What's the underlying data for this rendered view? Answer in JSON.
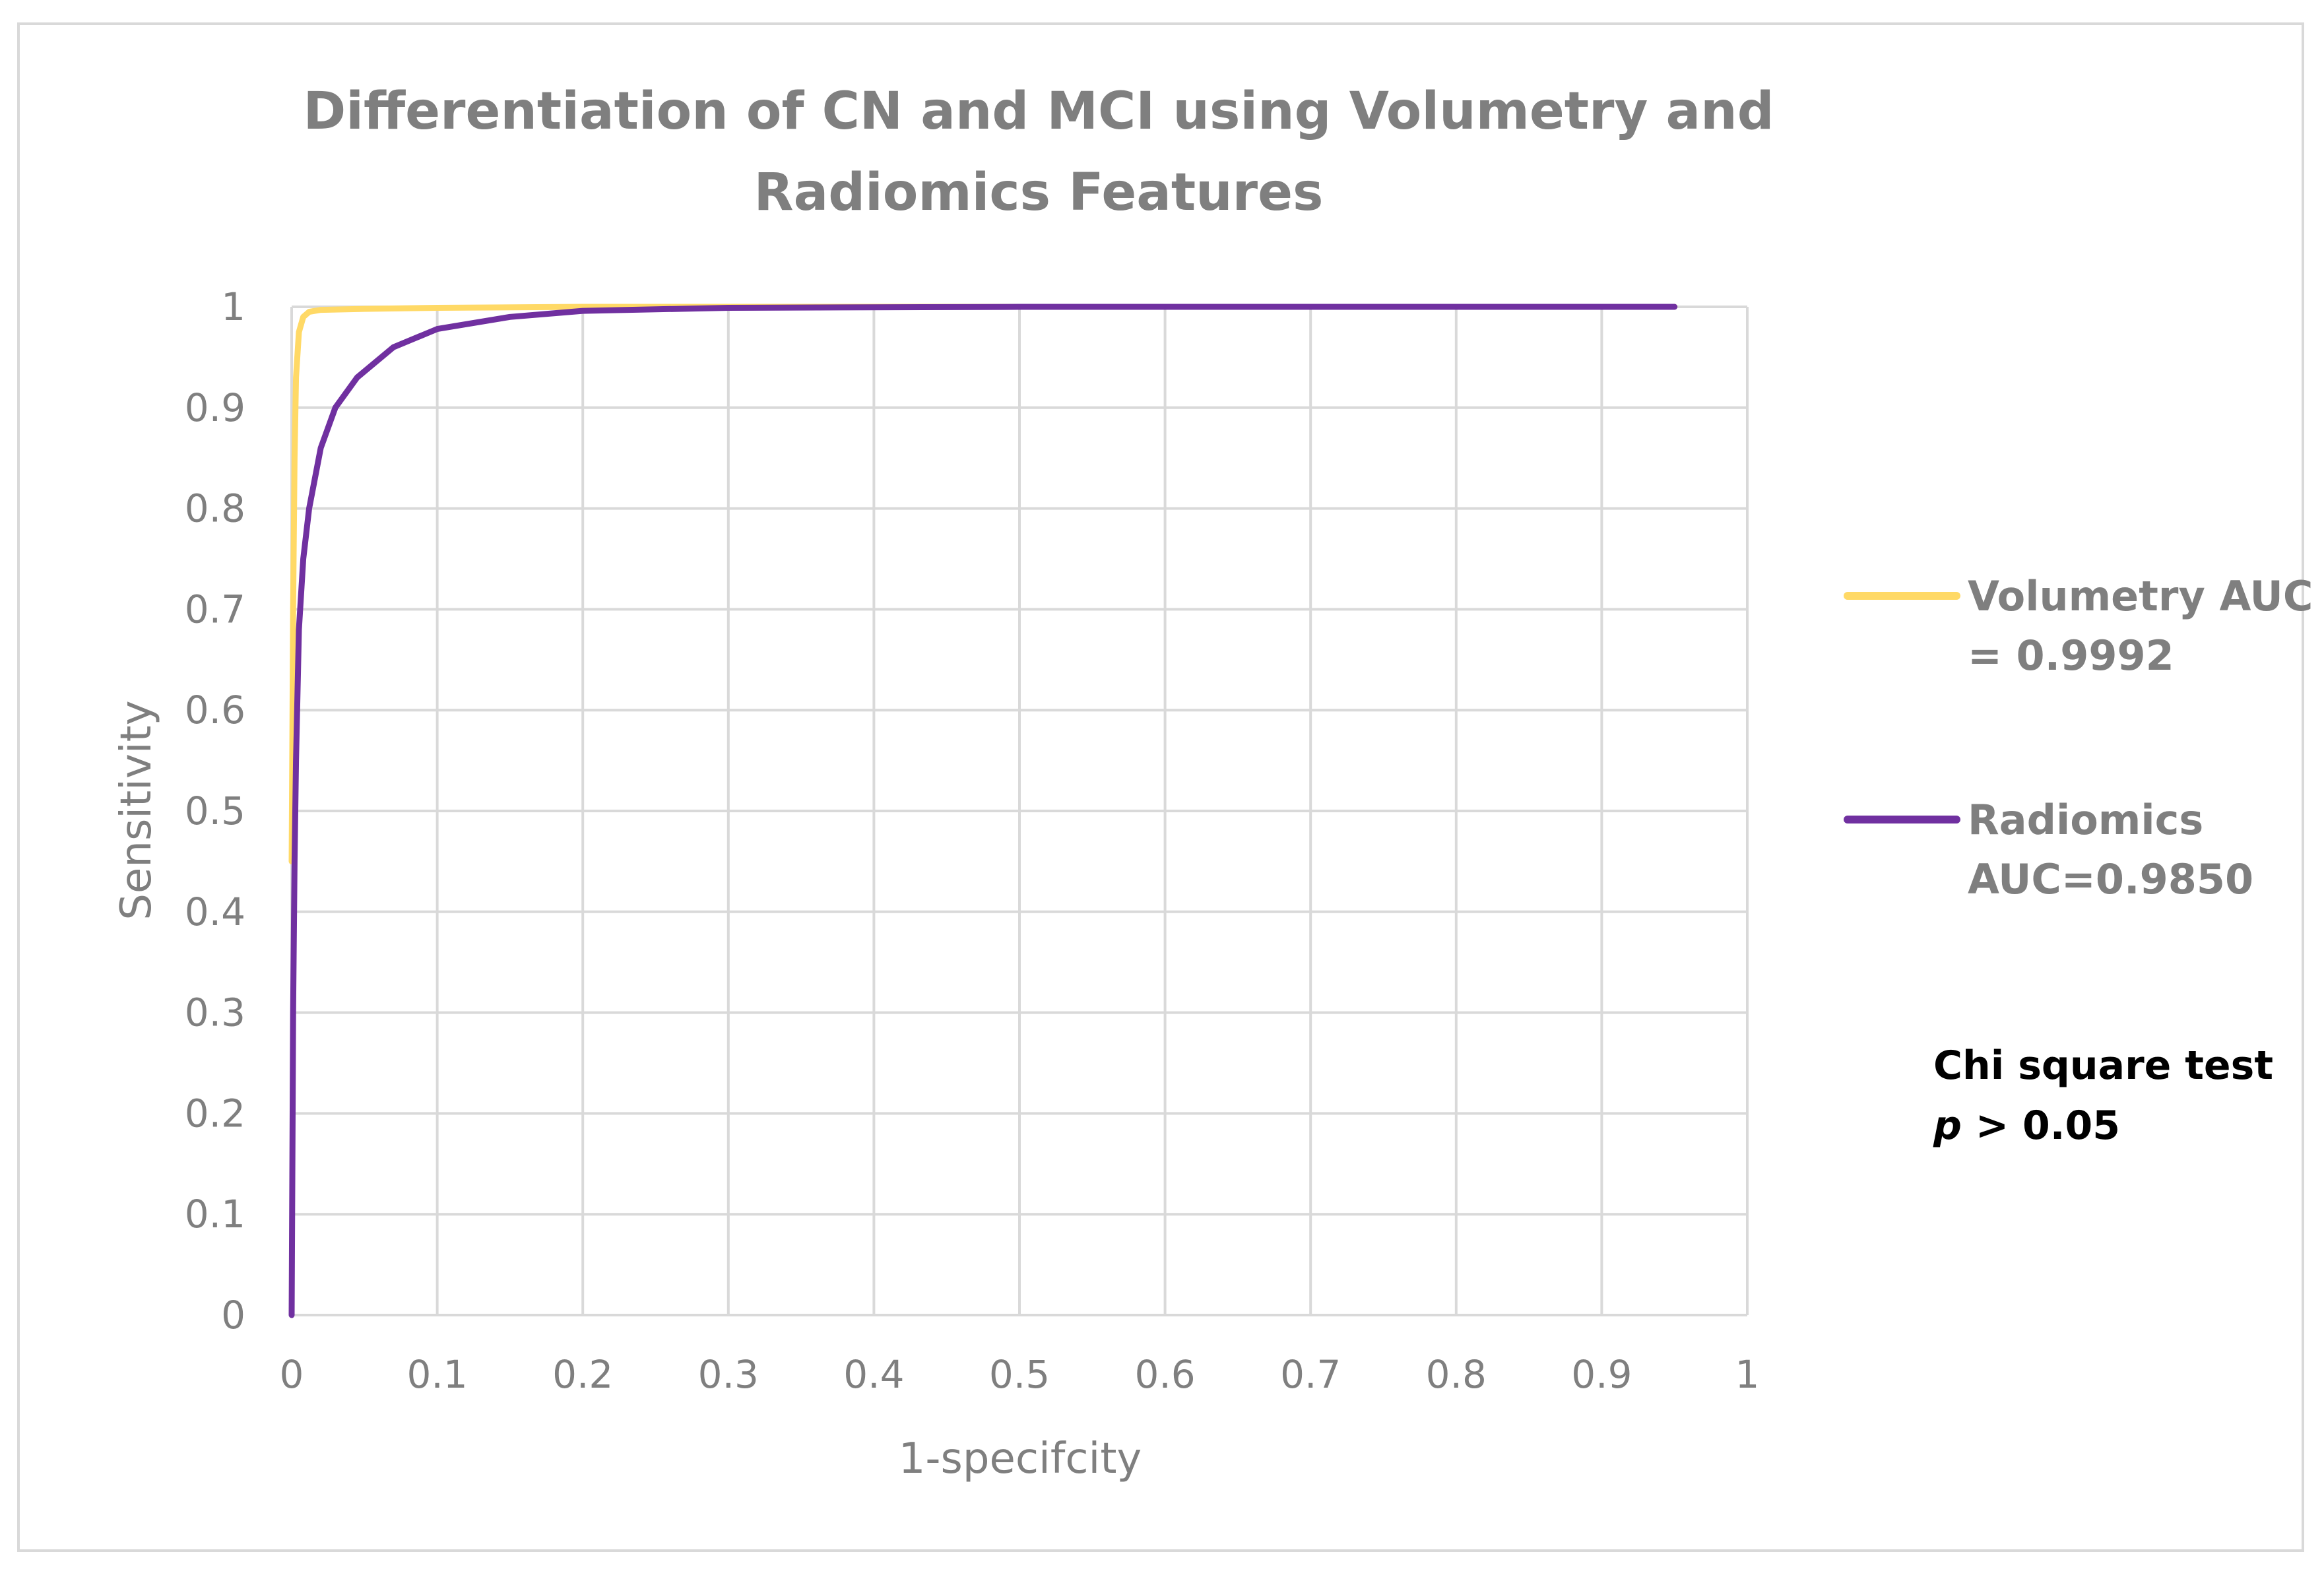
{
  "chart_data": {
    "type": "line",
    "title_lines": [
      "Differentiation of CN and MCI using Volumetry and",
      "Radiomics Features"
    ],
    "xlabel": "1-specifcity",
    "ylabel": "Sensitivity",
    "xlim": [
      0,
      1
    ],
    "ylim": [
      0,
      1
    ],
    "x_ticks": [
      "0",
      "0.1",
      "0.2",
      "0.3",
      "0.4",
      "0.5",
      "0.6",
      "0.7",
      "0.8",
      "0.9",
      "1"
    ],
    "y_ticks": [
      "0",
      "0.1",
      "0.2",
      "0.3",
      "0.4",
      "0.5",
      "0.6",
      "0.7",
      "0.8",
      "0.9",
      "1"
    ],
    "grid": true,
    "legend_position": "right",
    "series": [
      {
        "name": "Volumetry AUC = 0.9992",
        "legend_lines": [
          "Volumetry AUC",
          "= 0.9992"
        ],
        "color": "#ffd966",
        "points": [
          [
            0,
            0.45
          ],
          [
            0.001,
            0.7
          ],
          [
            0.002,
            0.85
          ],
          [
            0.003,
            0.93
          ],
          [
            0.005,
            0.975
          ],
          [
            0.008,
            0.99
          ],
          [
            0.012,
            0.995
          ],
          [
            0.02,
            0.997
          ],
          [
            0.05,
            0.998
          ],
          [
            0.1,
            0.999
          ],
          [
            0.2,
            1.0
          ],
          [
            0.95,
            1.0
          ]
        ]
      },
      {
        "name": "Radiomics AUC=0.9850",
        "legend_lines": [
          "Radiomics",
          "AUC=0.9850"
        ],
        "color": "#7030a0",
        "points": [
          [
            0,
            0
          ],
          [
            0.001,
            0.3
          ],
          [
            0.002,
            0.45
          ],
          [
            0.003,
            0.55
          ],
          [
            0.005,
            0.68
          ],
          [
            0.008,
            0.75
          ],
          [
            0.012,
            0.8
          ],
          [
            0.02,
            0.86
          ],
          [
            0.03,
            0.9
          ],
          [
            0.045,
            0.93
          ],
          [
            0.07,
            0.96
          ],
          [
            0.1,
            0.978
          ],
          [
            0.15,
            0.99
          ],
          [
            0.2,
            0.996
          ],
          [
            0.3,
            0.999
          ],
          [
            0.5,
            1.0
          ],
          [
            0.95,
            1.0
          ]
        ]
      }
    ],
    "annotation": {
      "line1": "Chi square test",
      "line2_italic": "p",
      "line2_rest": " > 0.05"
    }
  }
}
